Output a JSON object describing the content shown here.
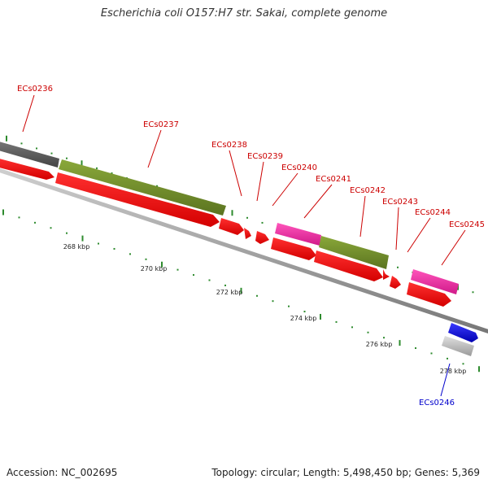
{
  "title": "Escherichia coli O157:H7 str. Sakai, complete genome",
  "footer": {
    "accession": "Accession: NC_002695",
    "summary": "Topology: circular; Length: 5,498,450 bp; Genes: 5,369"
  },
  "colors": {
    "label_red": "#cc0000",
    "label_blue": "#0000cc",
    "tick_green": "#2e8b2e",
    "backbone": "#999999"
  },
  "kbp_labels": [
    "268 kbp",
    "270 kbp",
    "272 kbp",
    "274 kbp",
    "276 kbp",
    "278 kbp"
  ],
  "genes": [
    {
      "name": "ECs0236",
      "color": "label_red"
    },
    {
      "name": "ECs0237",
      "color": "label_red"
    },
    {
      "name": "ECs0238",
      "color": "label_red"
    },
    {
      "name": "ECs0239",
      "color": "label_red"
    },
    {
      "name": "ECs0240",
      "color": "label_red"
    },
    {
      "name": "ECs0241",
      "color": "label_red"
    },
    {
      "name": "ECs0242",
      "color": "label_red"
    },
    {
      "name": "ECs0243",
      "color": "label_red"
    },
    {
      "name": "ECs0244",
      "color": "label_red"
    },
    {
      "name": "ECs0245",
      "color": "label_red"
    },
    {
      "name": "ECs0246",
      "color": "label_blue"
    }
  ]
}
